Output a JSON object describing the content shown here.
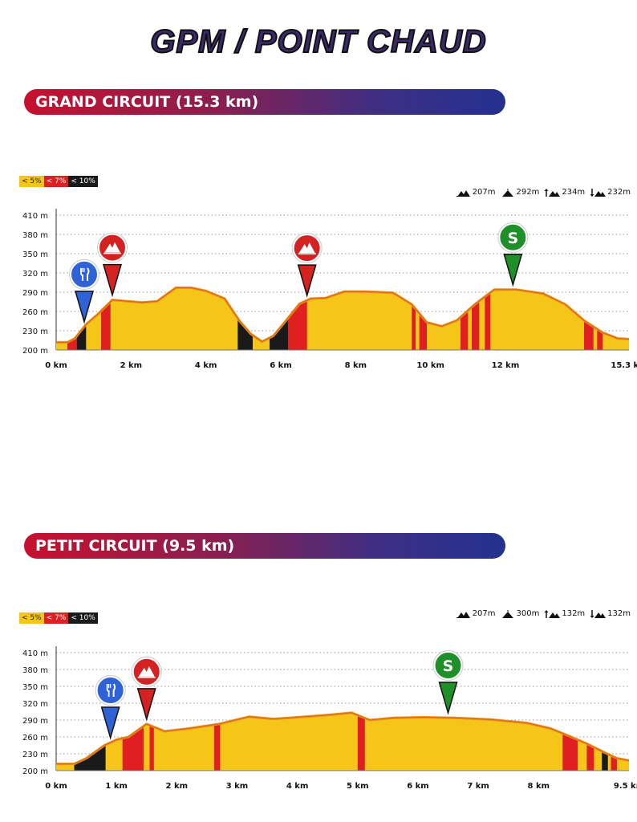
{
  "page": {
    "title": "GPM / POINT CHAUD"
  },
  "legend": [
    "< 5%",
    "< 7%",
    "< 10%"
  ],
  "colors": {
    "easy": "#f5c518",
    "medium": "#e02020",
    "hard": "#1a1a1a",
    "outline": "#f08a1c",
    "banner_start": "#c8102e",
    "banner_end": "#24318f"
  },
  "icons": {
    "food": "fork-knife-icon",
    "gpm": "mountain-icon",
    "sprint": "sprint-s-icon"
  },
  "circuits": [
    {
      "banner": "GRAND CIRCUIT (15.3 km)",
      "stats": [
        "207m",
        "292m",
        "234m",
        "232m"
      ],
      "stat_icons": [
        "min-altitude-icon",
        "max-altitude-icon",
        "ascent-icon",
        "descent-icon"
      ],
      "chart_data": {
        "type": "area",
        "x_ticks": [
          "0 km",
          "2 km",
          "4 km",
          "6 km",
          "8 km",
          "10 km",
          "12 km",
          "15.3 km"
        ],
        "x_tick_values": [
          0,
          2,
          4,
          6,
          8,
          10,
          12,
          15.3
        ],
        "y_ticks": [
          "200 m",
          "230 m",
          "260 m",
          "290 m",
          "320 m",
          "350 m",
          "380 m",
          "410 m"
        ],
        "y_tick_values": [
          200,
          230,
          260,
          290,
          320,
          350,
          380,
          410
        ],
        "xlim": [
          0,
          15.3
        ],
        "ylim": [
          200,
          410
        ],
        "grid": true,
        "profile": [
          [
            0,
            212
          ],
          [
            0.3,
            212
          ],
          [
            0.5,
            218
          ],
          [
            0.8,
            240
          ],
          [
            1.1,
            255
          ],
          [
            1.5,
            278
          ],
          [
            1.9,
            276
          ],
          [
            2.3,
            274
          ],
          [
            2.7,
            276
          ],
          [
            3.2,
            297
          ],
          [
            3.6,
            297
          ],
          [
            4.0,
            292
          ],
          [
            4.5,
            280
          ],
          [
            4.9,
            245
          ],
          [
            5.2,
            225
          ],
          [
            5.5,
            213
          ],
          [
            5.8,
            222
          ],
          [
            6.1,
            243
          ],
          [
            6.5,
            272
          ],
          [
            6.8,
            280
          ],
          [
            7.2,
            281
          ],
          [
            7.7,
            291
          ],
          [
            8.3,
            291
          ],
          [
            9.0,
            289
          ],
          [
            9.5,
            271
          ],
          [
            9.9,
            243
          ],
          [
            10.3,
            237
          ],
          [
            10.7,
            246
          ],
          [
            11.2,
            272
          ],
          [
            11.7,
            294
          ],
          [
            12.3,
            294
          ],
          [
            13.0,
            288
          ],
          [
            13.6,
            271
          ],
          [
            14.1,
            246
          ],
          [
            14.6,
            227
          ],
          [
            15.0,
            218
          ],
          [
            15.3,
            217
          ]
        ],
        "segments": [
          {
            "from": 0.3,
            "to": 0.55,
            "grade": "medium"
          },
          {
            "from": 0.55,
            "to": 0.8,
            "grade": "hard"
          },
          {
            "from": 1.2,
            "to": 1.45,
            "grade": "medium"
          },
          {
            "from": 4.85,
            "to": 5.25,
            "grade": "hard"
          },
          {
            "from": 5.7,
            "to": 6.2,
            "grade": "hard"
          },
          {
            "from": 6.2,
            "to": 6.7,
            "grade": "medium"
          },
          {
            "from": 9.5,
            "to": 9.6,
            "grade": "medium"
          },
          {
            "from": 9.7,
            "to": 9.9,
            "grade": "medium"
          },
          {
            "from": 10.8,
            "to": 11.0,
            "grade": "medium"
          },
          {
            "from": 11.1,
            "to": 11.3,
            "grade": "medium"
          },
          {
            "from": 11.45,
            "to": 11.6,
            "grade": "medium"
          },
          {
            "from": 14.1,
            "to": 14.35,
            "grade": "medium"
          },
          {
            "from": 14.45,
            "to": 14.6,
            "grade": "medium"
          }
        ],
        "markers": [
          {
            "type": "food",
            "x": 0.75,
            "color": "#2f62d6"
          },
          {
            "type": "gpm",
            "x": 1.5,
            "color": "#d42222"
          },
          {
            "type": "gpm",
            "x": 6.7,
            "color": "#d42222"
          },
          {
            "type": "sprint",
            "x": 12.2,
            "color": "#1f8f2a"
          }
        ]
      }
    },
    {
      "banner": "PETIT CIRCUIT (9.5 km)",
      "stats": [
        "207m",
        "300m",
        "132m",
        "132m"
      ],
      "stat_icons": [
        "min-altitude-icon",
        "max-altitude-icon",
        "ascent-icon",
        "descent-icon"
      ],
      "chart_data": {
        "type": "area",
        "x_ticks": [
          "0 km",
          "1 km",
          "2 km",
          "3 km",
          "4 km",
          "5 km",
          "6 km",
          "7 km",
          "8 km",
          "9.5 km"
        ],
        "x_tick_values": [
          0,
          1,
          2,
          3,
          4,
          5,
          6,
          7,
          8,
          9.5
        ],
        "y_ticks": [
          "200 m",
          "230 m",
          "260 m",
          "290 m",
          "320 m",
          "350 m",
          "380 m",
          "410 m"
        ],
        "y_tick_values": [
          200,
          230,
          260,
          290,
          320,
          350,
          380,
          410
        ],
        "xlim": [
          0,
          9.5
        ],
        "ylim": [
          200,
          410
        ],
        "grid": true,
        "profile": [
          [
            0,
            212
          ],
          [
            0.3,
            212
          ],
          [
            0.5,
            222
          ],
          [
            0.8,
            245
          ],
          [
            1.0,
            255
          ],
          [
            1.2,
            260
          ],
          [
            1.5,
            283
          ],
          [
            1.8,
            270
          ],
          [
            2.2,
            275
          ],
          [
            2.7,
            283
          ],
          [
            3.2,
            296
          ],
          [
            3.6,
            292
          ],
          [
            4.0,
            295
          ],
          [
            4.5,
            299
          ],
          [
            4.9,
            303
          ],
          [
            5.2,
            290
          ],
          [
            5.6,
            294
          ],
          [
            6.1,
            295
          ],
          [
            6.6,
            294
          ],
          [
            7.2,
            291
          ],
          [
            7.8,
            285
          ],
          [
            8.2,
            275
          ],
          [
            8.5,
            262
          ],
          [
            8.8,
            248
          ],
          [
            9.1,
            232
          ],
          [
            9.3,
            222
          ],
          [
            9.5,
            218
          ]
        ],
        "segments": [
          {
            "from": 0.3,
            "to": 0.82,
            "grade": "hard"
          },
          {
            "from": 1.1,
            "to": 1.45,
            "grade": "medium"
          },
          {
            "from": 1.55,
            "to": 1.62,
            "grade": "medium"
          },
          {
            "from": 2.62,
            "to": 2.72,
            "grade": "medium"
          },
          {
            "from": 5.0,
            "to": 5.12,
            "grade": "medium"
          },
          {
            "from": 8.4,
            "to": 8.65,
            "grade": "medium"
          },
          {
            "from": 8.8,
            "to": 8.92,
            "grade": "medium"
          },
          {
            "from": 9.05,
            "to": 9.15,
            "grade": "hard"
          },
          {
            "from": 9.2,
            "to": 9.3,
            "grade": "medium"
          }
        ],
        "markers": [
          {
            "type": "food",
            "x": 0.9,
            "color": "#2f62d6"
          },
          {
            "type": "gpm",
            "x": 1.5,
            "color": "#d42222"
          },
          {
            "type": "sprint",
            "x": 6.5,
            "color": "#1f8f2a"
          }
        ]
      }
    }
  ]
}
